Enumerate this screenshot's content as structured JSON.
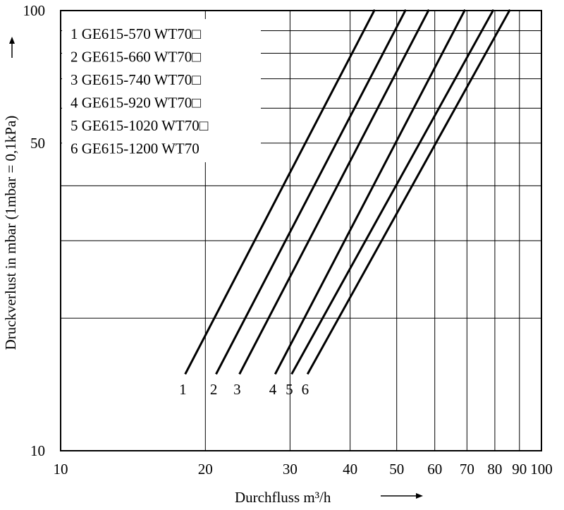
{
  "chart_data": {
    "type": "line",
    "title": "",
    "xlabel": "Durchfluss m³/h",
    "ylabel": "Druckverlust in mbar (1mbar = 0,1kPa)",
    "xscale": "log",
    "yscale": "log",
    "xlim": [
      10,
      100
    ],
    "ylim": [
      10,
      100
    ],
    "grid": true,
    "legend_position": "top-left",
    "x_ticks": [
      "10",
      "20",
      "30",
      "40",
      "50",
      "60",
      "70",
      "80",
      "90",
      "100"
    ],
    "y_ticks": [
      "10",
      "50",
      "100"
    ],
    "legend": [
      "1 GE615-570 WT70□",
      "2 GE615-660 WT70□",
      "3 GE615-740 WT70□",
      "4 GE615-920 WT70□",
      "5 GE615-1020 WT70□",
      "6 GE615-1200 WT70"
    ],
    "series": [
      {
        "name": "1",
        "x": [
          18.2,
          44.9
        ],
        "y": [
          15,
          100
        ]
      },
      {
        "name": "2",
        "x": [
          21.1,
          52.1
        ],
        "y": [
          15,
          100
        ]
      },
      {
        "name": "3",
        "x": [
          23.6,
          58.2
        ],
        "y": [
          15,
          100
        ]
      },
      {
        "name": "4",
        "x": [
          28.0,
          69.2
        ],
        "y": [
          15,
          100
        ]
      },
      {
        "name": "5",
        "x": [
          30.3,
          79.3
        ],
        "y": [
          15,
          100
        ]
      },
      {
        "name": "6",
        "x": [
          32.7,
          85.8
        ],
        "y": [
          15,
          100
        ]
      }
    ]
  }
}
